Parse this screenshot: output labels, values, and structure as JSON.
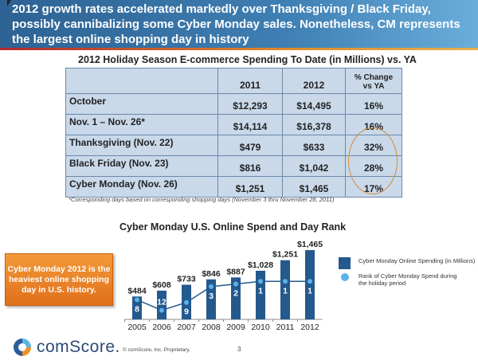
{
  "header": {
    "text": "2012 growth rates accelerated markedly over Thanksgiving / Black Friday, possibly cannibalizing some Cyber Monday sales. Nonetheless, CM represents the largest online shopping day in history"
  },
  "table": {
    "title": "2012 Holiday Season E-commerce Spending To Date (in Millions) vs. YA",
    "columns": [
      "",
      "2011",
      "2012",
      "% Change vs YA"
    ],
    "rows": [
      [
        "October",
        "$12,293",
        "$14,495",
        "16%"
      ],
      [
        "Nov. 1 – Nov. 26*",
        "$14,114",
        "$16,378",
        "16%"
      ],
      [
        "Thanksgiving (Nov. 22)",
        "$479",
        "$633",
        "32%"
      ],
      [
        "Black Friday (Nov. 23)",
        "$816",
        "$1,042",
        "28%"
      ],
      [
        "Cyber Monday (Nov. 26)",
        "$1,251",
        "$1,465",
        "17%"
      ]
    ],
    "footnote": "*Corresponding days based on corresponding shopping days (November 3 thru November 28, 2011)"
  },
  "callout": "Cyber Monday 2012 is the heaviest online shopping day in U.S. history.",
  "chart_data": {
    "type": "bar",
    "title": "Cyber Monday U.S. Online Spend and Day Rank",
    "categories": [
      "2005",
      "2006",
      "2007",
      "2008",
      "2009",
      "2010",
      "2011",
      "2012"
    ],
    "series": [
      {
        "name": "Cyber Monday Online Spending (in Millions)",
        "type": "bar",
        "values": [
          484,
          608,
          733,
          846,
          887,
          1028,
          1251,
          1465
        ],
        "labels": [
          "$484",
          "$608",
          "$733",
          "$846",
          "$887",
          "$1,028",
          "$1,251",
          "$1,465"
        ],
        "color": "#24598e"
      },
      {
        "name": "Rank of Cyber Monday Spend during the holiday period",
        "type": "line",
        "values": [
          8,
          12,
          9,
          3,
          2,
          1,
          1,
          1
        ],
        "color": "#5db1e8"
      }
    ]
  },
  "footer": {
    "logo": "comScore.",
    "copyright": "© comScore, Inc.   Proprietary.",
    "page": "3"
  }
}
